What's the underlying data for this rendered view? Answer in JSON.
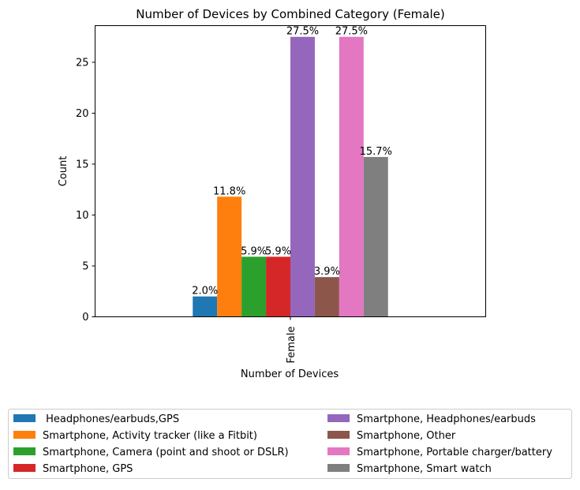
{
  "chart_data": {
    "type": "bar",
    "title": "Number of Devices by Combined Category (Female)",
    "xlabel": "Number of Devices",
    "ylabel": "Count",
    "categories": [
      "Female"
    ],
    "ylim": [
      0,
      28.6
    ],
    "yticks": [
      0,
      5,
      10,
      15,
      20,
      25
    ],
    "grid": false,
    "legend_placement": "bottom-center, two columns",
    "series": [
      {
        "name": " Headphones/earbuds,GPS",
        "values": [
          2
        ],
        "label": "2.0%",
        "color": "#1f77b4"
      },
      {
        "name": "Smartphone, Activity tracker (like a Fitbit)",
        "values": [
          11.8
        ],
        "label": "11.8%",
        "color": "#ff7f0e"
      },
      {
        "name": "Smartphone, Camera (point and shoot or DSLR)",
        "values": [
          5.9
        ],
        "label": "5.9%",
        "color": "#2ca02c"
      },
      {
        "name": "Smartphone, GPS",
        "values": [
          5.9
        ],
        "label": "5.9%",
        "color": "#d62728"
      },
      {
        "name": "Smartphone, Headphones/earbuds",
        "values": [
          27.5
        ],
        "label": "27.5%",
        "color": "#9467bd"
      },
      {
        "name": "Smartphone, Other",
        "values": [
          3.9
        ],
        "label": "3.9%",
        "color": "#8c564b"
      },
      {
        "name": "Smartphone, Portable charger/battery",
        "values": [
          27.5
        ],
        "label": "27.5%",
        "color": "#e377c2"
      },
      {
        "name": "Smartphone, Smart watch",
        "values": [
          15.7
        ],
        "label": "15.7%",
        "color": "#7f7f7f"
      }
    ]
  }
}
